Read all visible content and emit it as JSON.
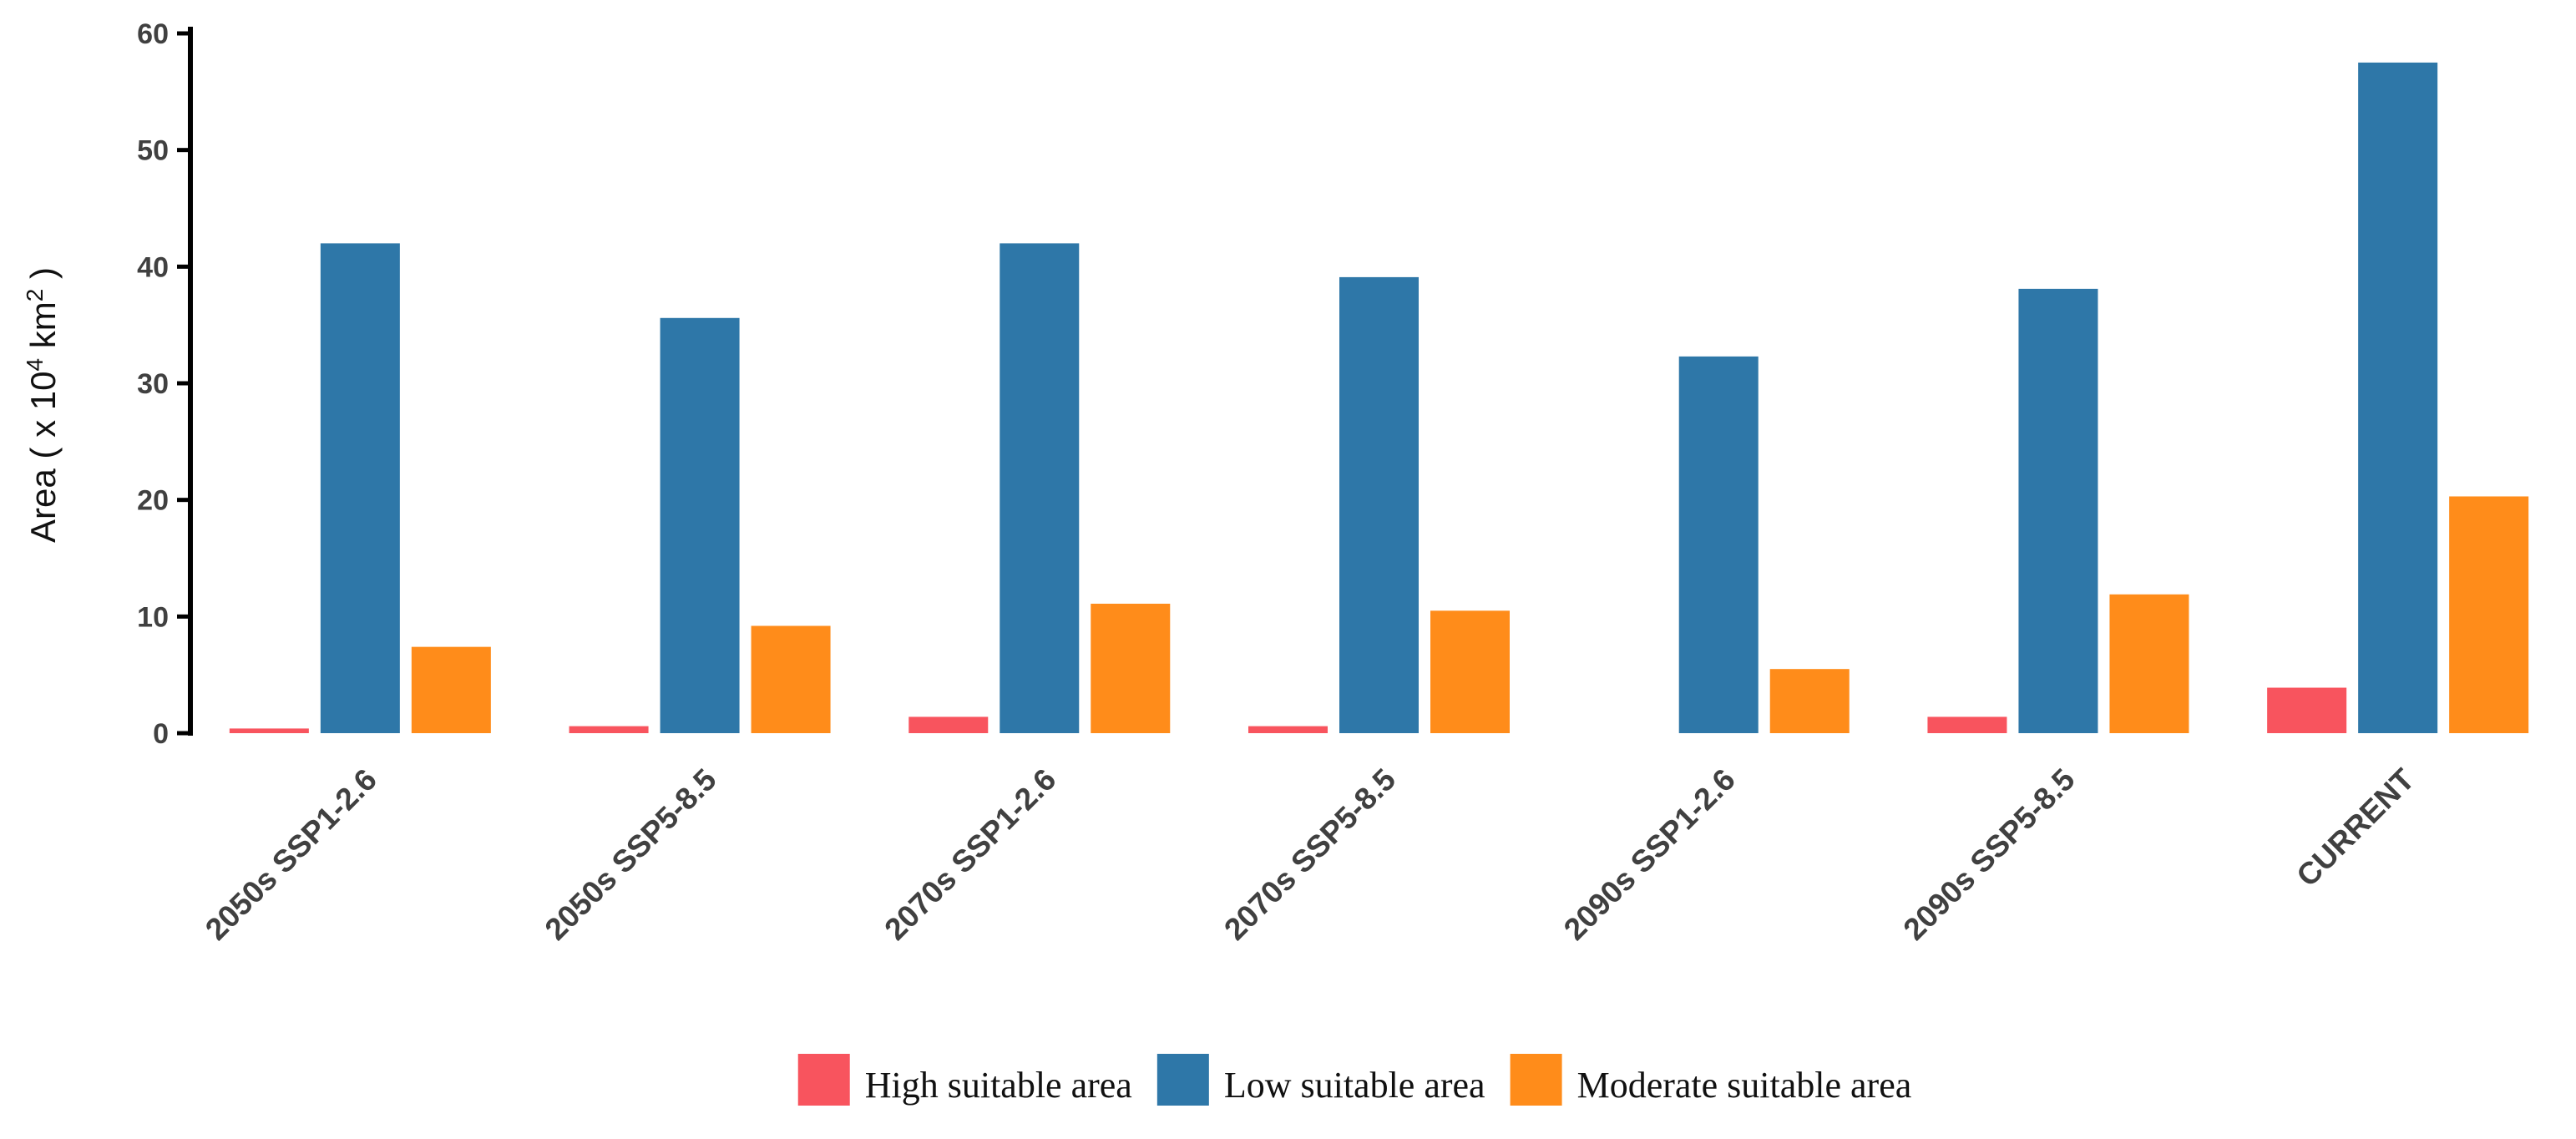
{
  "chart_data": {
    "type": "bar",
    "title": "",
    "xlabel": "",
    "ylabel": {
      "prefix": "Area ( x 10",
      "exponent": "4",
      "unit": " km",
      "unit_exponent": "2",
      "suffix": " )"
    },
    "ylim": [
      0,
      60
    ],
    "yticks": [
      0,
      10,
      20,
      30,
      40,
      50,
      60
    ],
    "categories": [
      "2050s SSP1-2.6",
      "2050s SSP5-8.5",
      "2070s SSP1-2.6",
      "2070s SSP5-8.5",
      "2090s SSP1-2.6",
      "2090s SSP5-8.5",
      "CURRENT"
    ],
    "series": [
      {
        "name": "High suitable area",
        "color": "#F8545E",
        "values": [
          0.4,
          0.6,
          1.4,
          0.6,
          0.0,
          1.4,
          3.9
        ]
      },
      {
        "name": "Low suitable area",
        "color": "#2E77A8",
        "values": [
          42.0,
          35.6,
          42.0,
          39.1,
          32.3,
          38.1,
          57.5
        ]
      },
      {
        "name": "Moderate suitable area",
        "color": "#FF8C1A",
        "values": [
          7.4,
          9.2,
          11.1,
          10.5,
          5.5,
          11.9,
          20.3
        ]
      }
    ],
    "legend_position": "bottom-center",
    "grid": false
  }
}
